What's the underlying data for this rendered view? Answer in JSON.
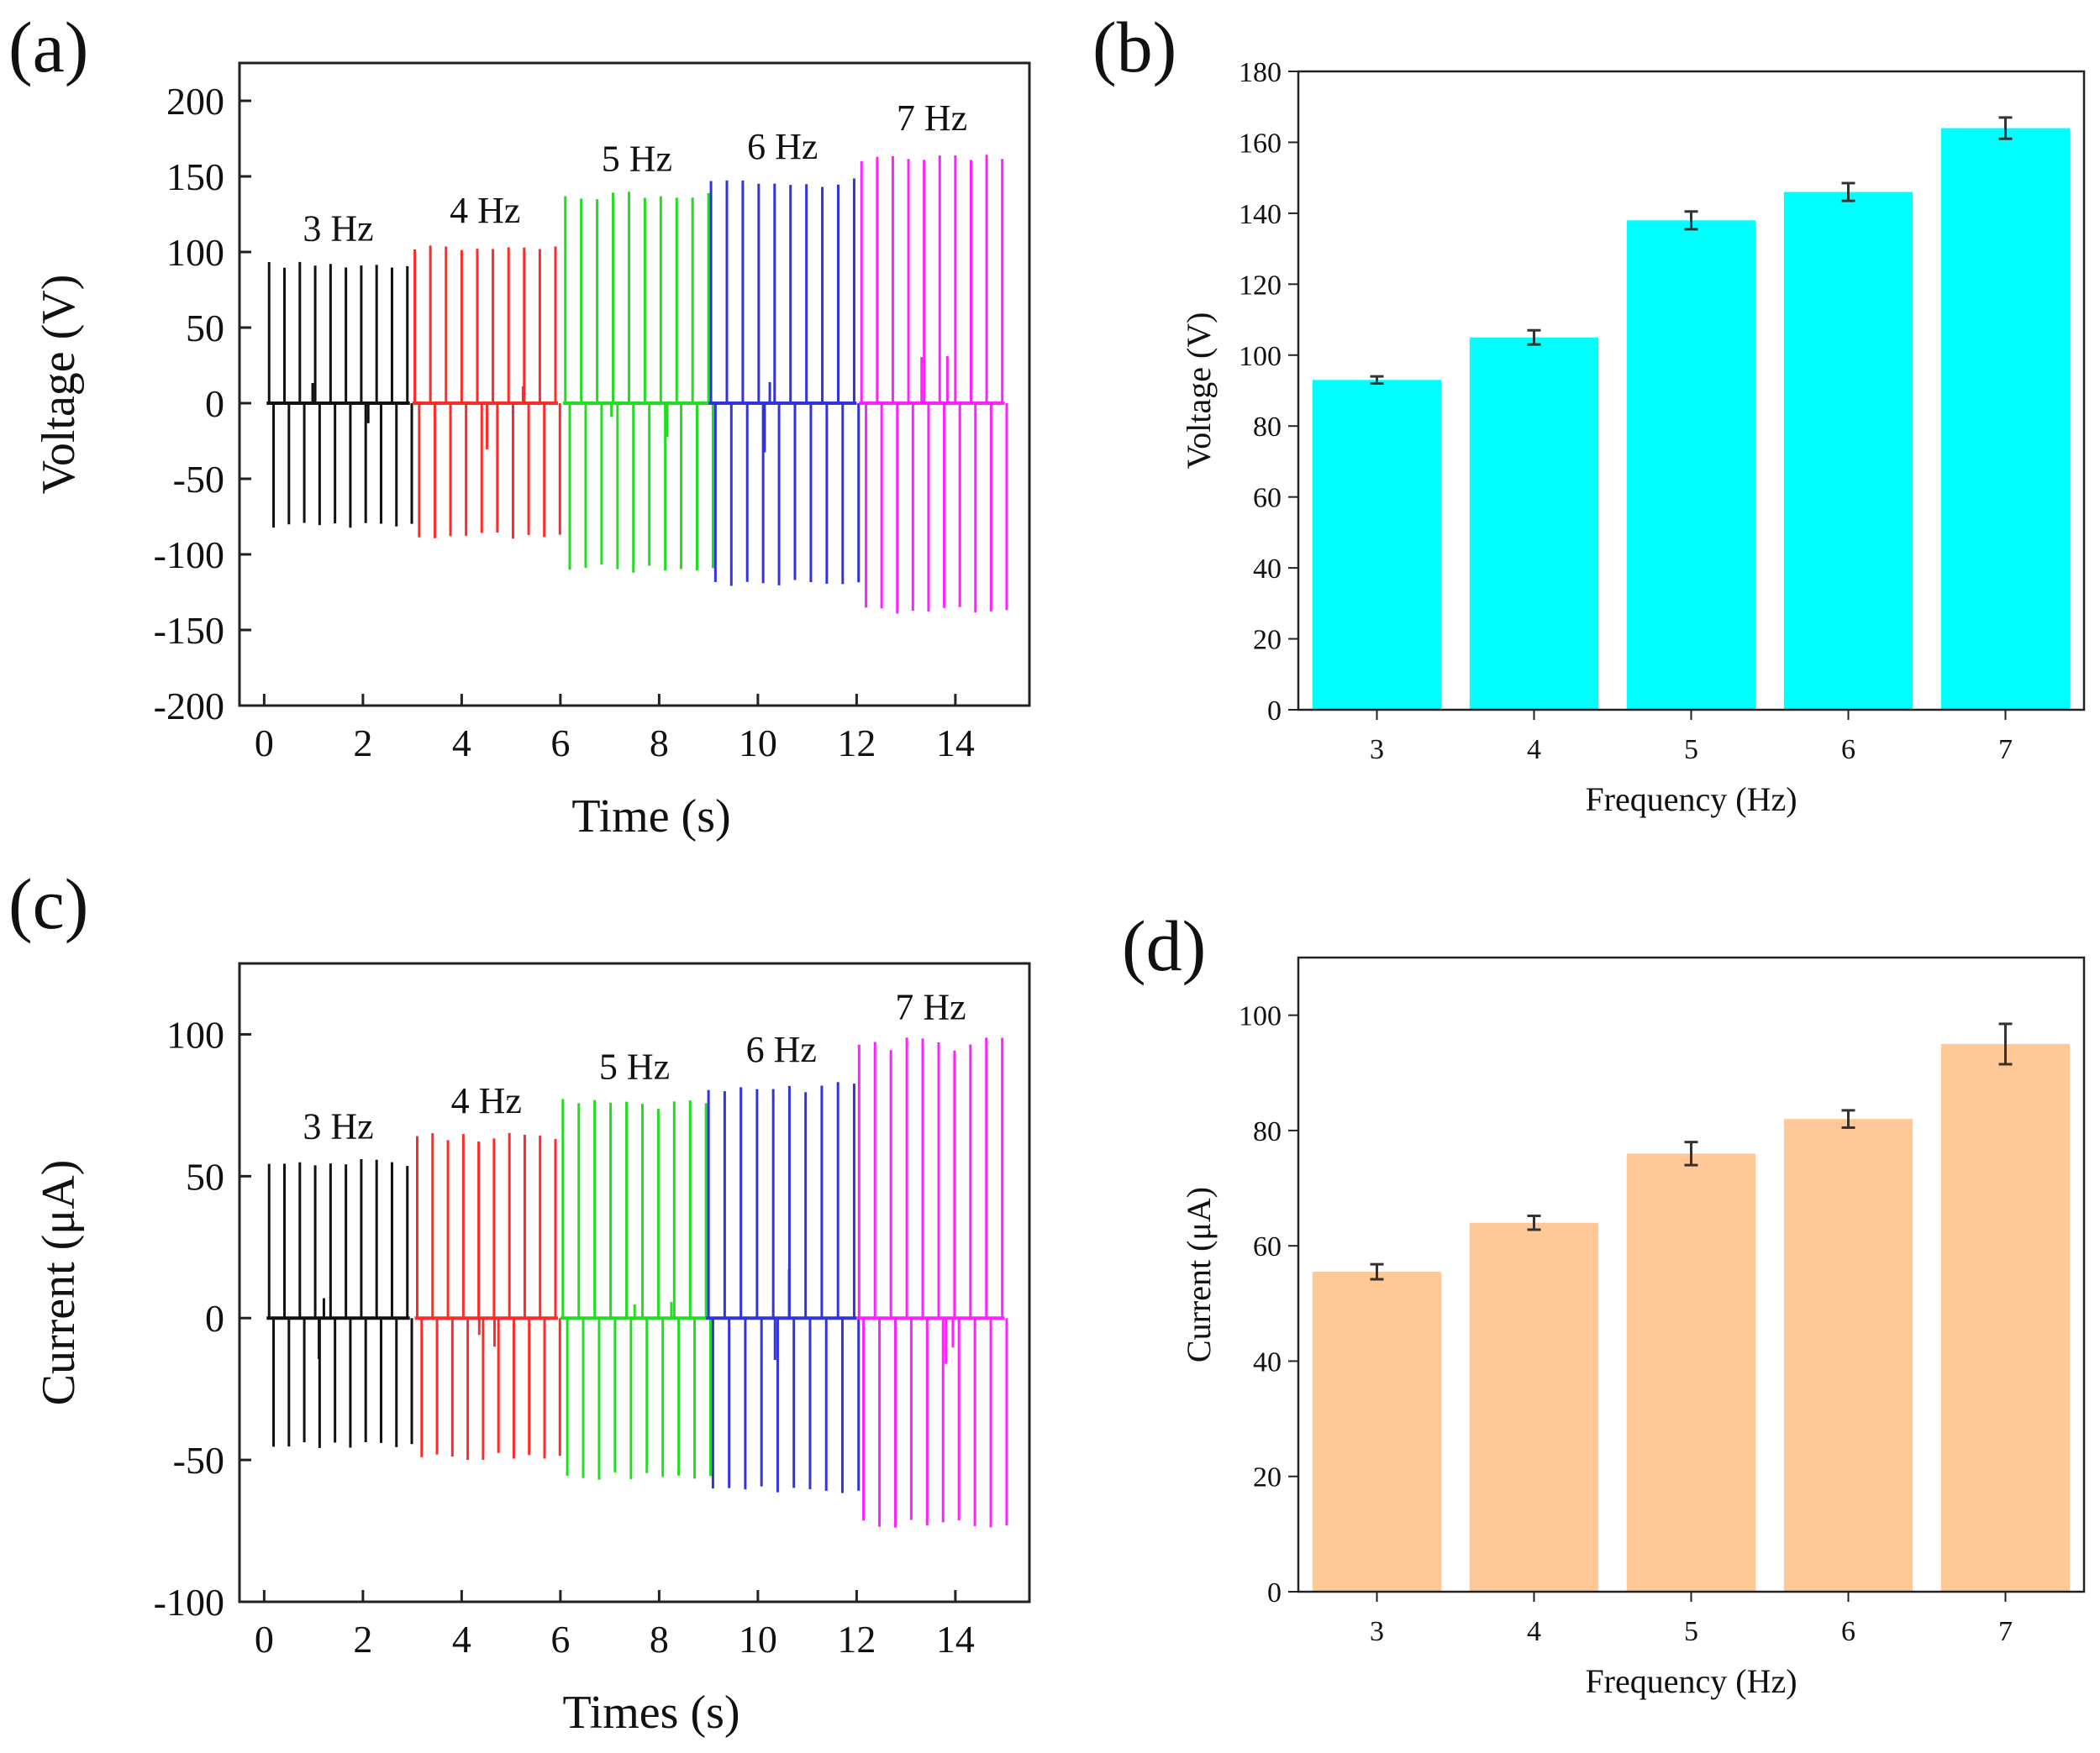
{
  "chart_data": [
    {
      "panel": "(a)",
      "type": "line",
      "title": "",
      "xlabel": "Time (s)",
      "ylabel": "Voltage (V)",
      "xlim": [
        -0.5,
        15.5
      ],
      "ylim": [
        -200,
        225
      ],
      "xticks": [
        0,
        2,
        4,
        6,
        8,
        10,
        12,
        14
      ],
      "yticks": [
        -200,
        -150,
        -100,
        -50,
        0,
        50,
        100,
        150,
        200
      ],
      "segments": [
        {
          "label": "3 Hz",
          "freq": 3,
          "t_start": 0.1,
          "t_end": 2.9,
          "color": "#111111",
          "pos_peak": 92,
          "neg_peak": -81
        },
        {
          "label": "4 Hz",
          "freq": 4,
          "t_start": 3.05,
          "t_end": 5.9,
          "color": "#ff2a2a",
          "pos_peak": 104,
          "neg_peak": -88
        },
        {
          "label": "5 Hz",
          "freq": 5,
          "t_start": 6.1,
          "t_end": 9.0,
          "color": "#22dd22",
          "pos_peak": 138,
          "neg_peak": -110
        },
        {
          "label": "6 Hz",
          "freq": 6,
          "t_start": 9.05,
          "t_end": 11.95,
          "color": "#3333dd",
          "pos_peak": 146,
          "neg_peak": -119
        },
        {
          "label": "7 Hz",
          "freq": 7,
          "t_start": 12.1,
          "t_end": 14.95,
          "color": "#ff22ff",
          "pos_peak": 165,
          "neg_peak": -137
        }
      ]
    },
    {
      "panel": "(b)",
      "type": "bar",
      "title": "",
      "xlabel": "Frequency (Hz)",
      "ylabel": "Voltage (V)",
      "categories": [
        "3",
        "4",
        "5",
        "6",
        "7"
      ],
      "values": [
        93,
        105,
        138,
        146,
        164
      ],
      "errors": [
        1,
        2,
        2.5,
        2.5,
        3
      ],
      "ylim": [
        0,
        180
      ],
      "yticks": [
        0,
        20,
        40,
        60,
        80,
        100,
        120,
        140,
        160,
        180
      ],
      "color": "#00ffff"
    },
    {
      "panel": "(c)",
      "type": "line",
      "title": "",
      "xlabel": "Times (s)",
      "ylabel": "Current (μA)",
      "xlim": [
        -0.5,
        15.5
      ],
      "ylim": [
        -100,
        125
      ],
      "xticks": [
        0,
        2,
        4,
        6,
        8,
        10,
        12,
        14
      ],
      "yticks": [
        -100,
        -50,
        0,
        50,
        100
      ],
      "segments": [
        {
          "label": "3 Hz",
          "freq": 3,
          "t_start": 0.1,
          "t_end": 2.9,
          "color": "#111111",
          "pos_peak": 55,
          "neg_peak": -45
        },
        {
          "label": "4 Hz",
          "freq": 4,
          "t_start": 3.1,
          "t_end": 5.9,
          "color": "#ff2a2a",
          "pos_peak": 64,
          "neg_peak": -49
        },
        {
          "label": "5 Hz",
          "freq": 5,
          "t_start": 6.05,
          "t_end": 8.95,
          "color": "#22dd22",
          "pos_peak": 76,
          "neg_peak": -56
        },
        {
          "label": "6 Hz",
          "freq": 6,
          "t_start": 9.0,
          "t_end": 11.95,
          "color": "#3333dd",
          "pos_peak": 82,
          "neg_peak": -61
        },
        {
          "label": "7 Hz",
          "freq": 7,
          "t_start": 12.05,
          "t_end": 14.95,
          "color": "#ff22ff",
          "pos_peak": 97,
          "neg_peak": -73
        }
      ]
    },
    {
      "panel": "(d)",
      "type": "bar",
      "title": "",
      "xlabel": "Frequency (Hz)",
      "ylabel": "Current (μA)",
      "categories": [
        "3",
        "4",
        "5",
        "6",
        "7"
      ],
      "values": [
        55.5,
        64,
        76,
        82,
        95
      ],
      "errors": [
        1.3,
        1.2,
        2,
        1.5,
        3.5
      ],
      "ylim": [
        0,
        110
      ],
      "yticks": [
        0,
        20,
        40,
        60,
        80,
        100
      ],
      "color": "#ffc896"
    }
  ]
}
